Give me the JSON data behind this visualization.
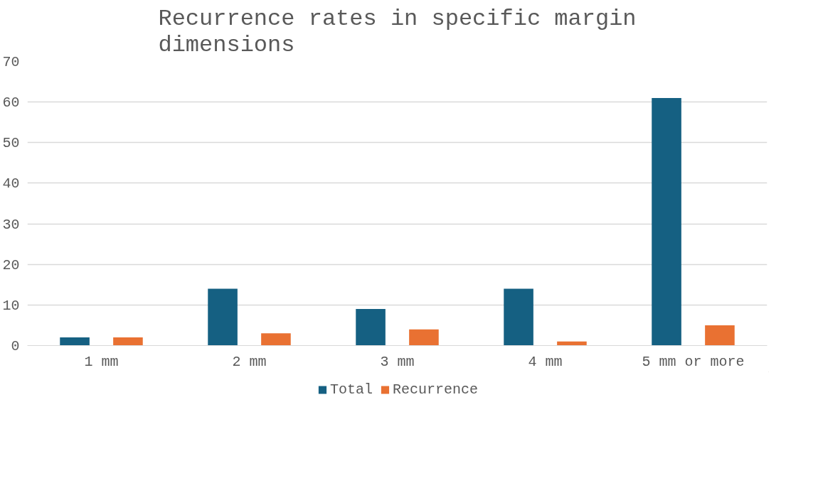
{
  "chart_data": {
    "type": "bar",
    "title": "Recurrence rates in specific margin dimensions",
    "categories": [
      "1 mm",
      "2 mm",
      "3 mm",
      "4 mm",
      "5 mm or more"
    ],
    "series": [
      {
        "name": "Total",
        "color": "#156082",
        "values": [
          2,
          14,
          9,
          14,
          61
        ]
      },
      {
        "name": "Recurrence",
        "color": "#e97132",
        "values": [
          2,
          3,
          4,
          1,
          5
        ]
      }
    ],
    "ylim": [
      0,
      70
    ],
    "yticks": [
      0,
      10,
      20,
      30,
      40,
      50,
      60,
      70
    ],
    "grid": "y",
    "legend": "bottom"
  }
}
